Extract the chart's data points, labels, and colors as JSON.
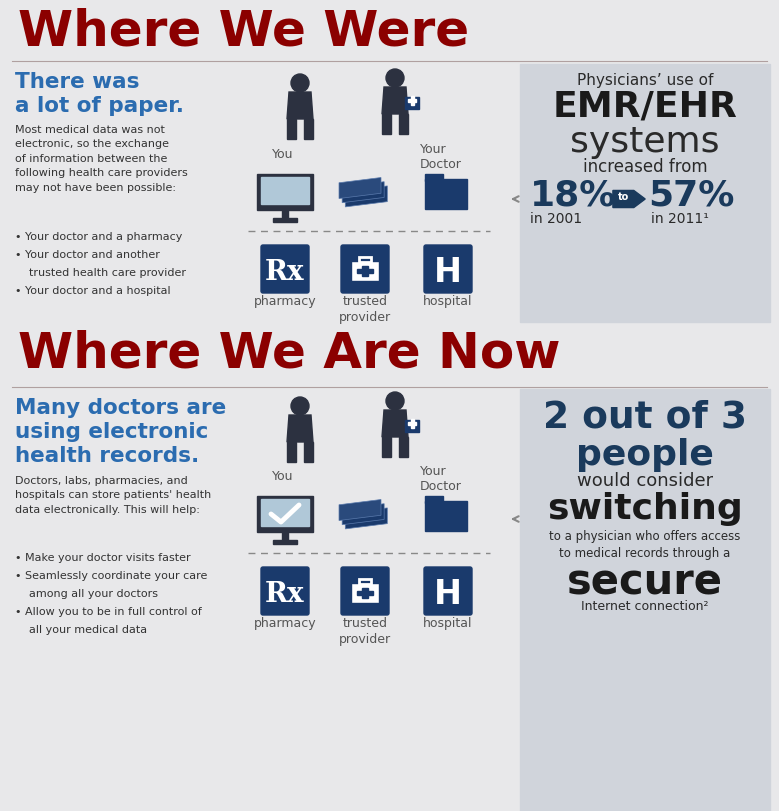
{
  "bg_color": "#e8e8ea",
  "section1_title": "Where We Were",
  "section2_title": "Where We Are Now",
  "title_color": "#8b0000",
  "left1_heading_line1": "There was",
  "left1_heading_line2": "a lot of paper.",
  "left1_heading_color": "#2b6cb0",
  "left1_body": "Most medical data was not\nelectronic, so the exchange\nof information between the\nfollowing health care providers\nmay not have been possible:",
  "left1_bullets": [
    "Your doctor and a pharmacy",
    "Your doctor and another\n   trusted health care provider",
    "Your doctor and a hospital"
  ],
  "left2_heading_line1": "Many doctors are",
  "left2_heading_line2": "using electronic",
  "left2_heading_line3": "health records.",
  "left2_heading_color": "#2b6cb0",
  "left2_body": "Doctors, labs, pharmacies, and\nhospitals can store patients' health\ndata electronically. This will help:",
  "left2_bullets": [
    "Make your doctor visits faster",
    "Seamlessly coordinate your care\n   among all your doctors",
    "Allow you to be in full control of\n   all your medical data"
  ],
  "right1_line1": "Physicians’ use of",
  "right1_line2": "EMR/EHR",
  "right1_line3": "systems",
  "right1_line4": "increased from",
  "right1_pct1": "18%",
  "right1_pct2": "57%",
  "right1_to": "to",
  "right1_year1": "in 2001",
  "right1_year2": "in 2011¹",
  "right2_line1": "2 out of 3",
  "right2_line2": "people",
  "right2_line3": "would consider",
  "right2_line4": "switching",
  "right2_line5a": "to a physician who offers access",
  "right2_line5b": "to medical records through a",
  "right2_line6": "secure",
  "right2_line7": "Internet connection²",
  "stat_color": "#1a3a5c",
  "stat_bg": "#d0d4db",
  "icon_color": "#2c3140",
  "icon_blue": "#1a3a6c",
  "label_color": "#555555",
  "pharmacy_label": "pharmacy",
  "trusted_label": "trusted\nprovider",
  "hospital_label": "hospital",
  "you_label": "You",
  "doctor_label": "Your\nDoctor"
}
